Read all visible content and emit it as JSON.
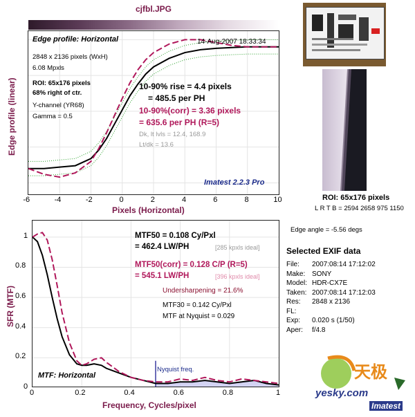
{
  "title": "cjfbl.JPG",
  "edge": {
    "heading": "Edge profile: Horizontal",
    "timestamp": "14-Aug-2007 18:33:34",
    "info": [
      "2848 x 2136 pixels (WxH)",
      "6.08 Mpxls"
    ],
    "roi_line1": "ROI: 65x176 pixels",
    "roi_line2": "68% right of ctr.",
    "channel": "Y-channel  (YR68)",
    "gamma": "Gamma = 0.5",
    "rise1": "10-90% rise = 4.4 pixels",
    "rise2": "= 485.5 per PH",
    "corr1": "10-90%(corr) = 3.36 pixels",
    "corr2": "= 635.6 per PH  (R=5)",
    "levels": "Dk, lt lvls = 12.4, 168.9",
    "ltdk": "Lt/dk = 13.6",
    "brand": "Imatest 2.2.3 Pro",
    "ylabel": "Edge profile (linear)",
    "xlabel": "Pixels (Horizontal)"
  },
  "mtf": {
    "heading": "MTF: Horizontal",
    "mtf50": "MTF50 = 0.108 Cy/Pxl",
    "mtf50_lw": "= 462.4 LW/PH",
    "ideal1": "[285 kpxls ideal]",
    "mtf50c": "MTF50(corr) = 0.128 C/P  (R=5)",
    "mtf50c_lw": "= 545.1 LW/PH",
    "ideal2": "[396 kpxls ideal]",
    "undersharp": "Undersharpening = 21.6%",
    "mtf30": "MTF30 = 0.142 Cy/Pxl",
    "nyq": "MTF at Nyquist = 0.029",
    "nyq_label": "Nyquist freq.",
    "ylabel": "SFR (MTF)",
    "xlabel": "Frequency, Cycles/pixel"
  },
  "side": {
    "roi": "ROI: 65x176 pixels",
    "lrtb": "L R T B = 2594 2658  975 1150",
    "angle": "Edge angle = -5.56 degs",
    "exif_title": "Selected EXIF data",
    "exif": [
      {
        "k": "File:",
        "v": "2007:08:14 17:12:02"
      },
      {
        "k": "Make:",
        "v": "SONY"
      },
      {
        "k": "Model:",
        "v": "HDR-CX7E"
      },
      {
        "k": "Taken:",
        "v": "2007:08:14 17:12:03"
      },
      {
        "k": "Res:",
        "v": "2848 x 2136"
      },
      {
        "k": "FL:",
        "v": ""
      },
      {
        "k": "Exp:",
        "v": "0.020 s  (1/50)"
      },
      {
        "k": "Aper:",
        "v": "f/4.8"
      }
    ],
    "logo_cn": "天极",
    "logo_url": "yesky.com",
    "logo_brand": "Imatest"
  },
  "colors": {
    "dark": "#000000",
    "corrected": "#b0175a",
    "green": "#2aa02a",
    "label": "#7a1a4a"
  },
  "chart_data": [
    {
      "type": "line",
      "title": "Edge profile: Horizontal",
      "xlabel": "Pixels (Horizontal)",
      "ylabel": "Edge profile (linear)",
      "xlim": [
        -6,
        10
      ],
      "ylim": [
        0,
        1
      ],
      "xticks": [
        -6,
        -4,
        -2,
        0,
        2,
        4,
        6,
        8,
        10
      ],
      "series": [
        {
          "name": "Edge profile",
          "color": "#000000",
          "dash": "solid",
          "x": [
            -6,
            -5,
            -4,
            -3,
            -2,
            -1.5,
            -1,
            -0.5,
            0,
            0.5,
            1,
            1.5,
            2,
            3,
            4,
            5,
            6,
            7,
            8,
            9,
            10
          ],
          "y": [
            0.1,
            0.1,
            0.11,
            0.12,
            0.17,
            0.23,
            0.31,
            0.41,
            0.51,
            0.61,
            0.69,
            0.76,
            0.81,
            0.87,
            0.91,
            0.93,
            0.94,
            0.945,
            0.95,
            0.95,
            0.95
          ]
        },
        {
          "name": "Edge profile (corr)",
          "color": "#b0175a",
          "dash": "dashed",
          "x": [
            -6,
            -5,
            -4,
            -3,
            -2,
            -1.5,
            -1,
            -0.5,
            0,
            0.5,
            1,
            1.5,
            2,
            3,
            4,
            5,
            6,
            7,
            8,
            9,
            10
          ],
          "y": [
            0.1,
            0.06,
            0.04,
            0.07,
            0.15,
            0.24,
            0.35,
            0.47,
            0.59,
            0.7,
            0.79,
            0.86,
            0.91,
            0.97,
            1.0,
            1.0,
            0.98,
            0.96,
            0.95,
            0.95,
            0.95
          ]
        }
      ]
    },
    {
      "type": "line",
      "title": "MTF: Horizontal",
      "xlabel": "Frequency, Cycles/pixel",
      "ylabel": "SFR (MTF)",
      "xlim": [
        0,
        1
      ],
      "ylim": [
        0,
        1.05
      ],
      "xticks": [
        0,
        0.2,
        0.4,
        0.6,
        0.8,
        1
      ],
      "yticks": [
        0,
        0.2,
        0.4,
        0.6,
        0.8,
        1
      ],
      "nyquist": 0.5,
      "series": [
        {
          "name": "MTF",
          "color": "#000000",
          "dash": "solid",
          "x": [
            0,
            0.02,
            0.04,
            0.06,
            0.08,
            0.1,
            0.12,
            0.15,
            0.18,
            0.2,
            0.22,
            0.25,
            0.28,
            0.3,
            0.35,
            0.4,
            0.45,
            0.5,
            0.55,
            0.6,
            0.65,
            0.7,
            0.75,
            0.8,
            0.85,
            0.9,
            0.95,
            1.0
          ],
          "y": [
            1.0,
            0.97,
            0.88,
            0.75,
            0.6,
            0.46,
            0.34,
            0.22,
            0.16,
            0.15,
            0.15,
            0.16,
            0.15,
            0.13,
            0.1,
            0.07,
            0.05,
            0.03,
            0.03,
            0.04,
            0.04,
            0.05,
            0.04,
            0.03,
            0.04,
            0.05,
            0.03,
            0.02
          ]
        },
        {
          "name": "MTF (corr)",
          "color": "#b0175a",
          "dash": "dashed",
          "x": [
            0,
            0.02,
            0.04,
            0.06,
            0.08,
            0.1,
            0.12,
            0.15,
            0.18,
            0.2,
            0.22,
            0.25,
            0.28,
            0.3,
            0.35,
            0.4,
            0.45,
            0.5,
            0.55,
            0.6,
            0.65,
            0.7,
            0.75,
            0.8,
            0.85,
            0.9,
            0.95,
            1.0
          ],
          "y": [
            1.0,
            1.02,
            1.03,
            0.98,
            0.85,
            0.68,
            0.5,
            0.3,
            0.18,
            0.15,
            0.16,
            0.19,
            0.2,
            0.17,
            0.11,
            0.07,
            0.05,
            0.04,
            0.04,
            0.06,
            0.05,
            0.07,
            0.05,
            0.04,
            0.06,
            0.05,
            0.04,
            0.03
          ]
        }
      ]
    }
  ]
}
